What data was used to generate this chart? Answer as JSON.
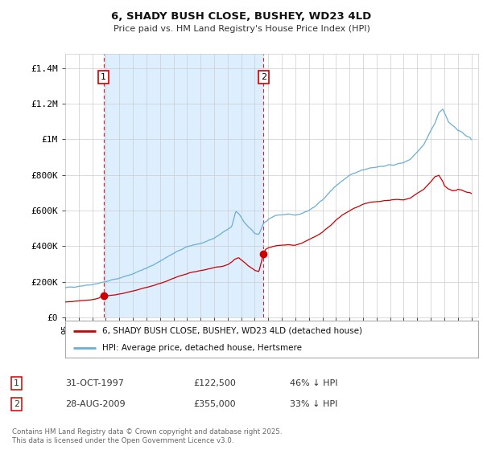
{
  "title": "6, SHADY BUSH CLOSE, BUSHEY, WD23 4LD",
  "subtitle": "Price paid vs. HM Land Registry's House Price Index (HPI)",
  "ylabel_ticks": [
    "£0",
    "£200K",
    "£400K",
    "£600K",
    "£800K",
    "£1M",
    "£1.2M",
    "£1.4M"
  ],
  "ytick_vals": [
    0,
    200000,
    400000,
    600000,
    800000,
    1000000,
    1200000,
    1400000
  ],
  "ylim": [
    0,
    1480000
  ],
  "xlim_start": 1995.0,
  "xlim_end": 2025.5,
  "hpi_color": "#6baed6",
  "price_color": "#cc0000",
  "shade_color": "#ddeeff",
  "sale1_date": 1997.83,
  "sale1_price": 122500,
  "sale2_date": 2009.65,
  "sale2_price": 355000,
  "legend_label_red": "6, SHADY BUSH CLOSE, BUSHEY, WD23 4LD (detached house)",
  "legend_label_blue": "HPI: Average price, detached house, Hertsmere",
  "footer": "Contains HM Land Registry data © Crown copyright and database right 2025.\nThis data is licensed under the Open Government Licence v3.0.",
  "background_color": "#ffffff",
  "grid_color": "#cccccc",
  "hpi_anchors": [
    [
      1995.0,
      165000
    ],
    [
      1995.5,
      170000
    ],
    [
      1996.0,
      175000
    ],
    [
      1996.5,
      180000
    ],
    [
      1997.0,
      185000
    ],
    [
      1997.5,
      192000
    ],
    [
      1998.0,
      200000
    ],
    [
      1998.5,
      210000
    ],
    [
      1999.0,
      220000
    ],
    [
      1999.5,
      232000
    ],
    [
      2000.0,
      245000
    ],
    [
      2000.5,
      260000
    ],
    [
      2001.0,
      275000
    ],
    [
      2001.5,
      295000
    ],
    [
      2002.0,
      315000
    ],
    [
      2002.5,
      338000
    ],
    [
      2003.0,
      358000
    ],
    [
      2003.5,
      378000
    ],
    [
      2004.0,
      395000
    ],
    [
      2004.5,
      408000
    ],
    [
      2005.0,
      415000
    ],
    [
      2005.5,
      425000
    ],
    [
      2006.0,
      445000
    ],
    [
      2006.5,
      470000
    ],
    [
      2007.0,
      495000
    ],
    [
      2007.3,
      510000
    ],
    [
      2007.6,
      595000
    ],
    [
      2007.9,
      575000
    ],
    [
      2008.2,
      540000
    ],
    [
      2008.5,
      510000
    ],
    [
      2008.8,
      490000
    ],
    [
      2009.0,
      470000
    ],
    [
      2009.3,
      465000
    ],
    [
      2009.65,
      530000
    ],
    [
      2009.9,
      540000
    ],
    [
      2010.0,
      550000
    ],
    [
      2010.5,
      570000
    ],
    [
      2011.0,
      575000
    ],
    [
      2011.5,
      580000
    ],
    [
      2012.0,
      575000
    ],
    [
      2012.5,
      585000
    ],
    [
      2013.0,
      600000
    ],
    [
      2013.5,
      625000
    ],
    [
      2014.0,
      660000
    ],
    [
      2014.5,
      700000
    ],
    [
      2015.0,
      740000
    ],
    [
      2015.5,
      770000
    ],
    [
      2016.0,
      795000
    ],
    [
      2016.5,
      815000
    ],
    [
      2017.0,
      830000
    ],
    [
      2017.5,
      840000
    ],
    [
      2018.0,
      845000
    ],
    [
      2018.5,
      850000
    ],
    [
      2019.0,
      855000
    ],
    [
      2019.5,
      860000
    ],
    [
      2020.0,
      870000
    ],
    [
      2020.5,
      890000
    ],
    [
      2021.0,
      930000
    ],
    [
      2021.5,
      975000
    ],
    [
      2022.0,
      1050000
    ],
    [
      2022.3,
      1090000
    ],
    [
      2022.6,
      1150000
    ],
    [
      2022.9,
      1170000
    ],
    [
      2023.0,
      1150000
    ],
    [
      2023.3,
      1100000
    ],
    [
      2023.6,
      1080000
    ],
    [
      2023.9,
      1060000
    ],
    [
      2024.0,
      1050000
    ],
    [
      2024.3,
      1040000
    ],
    [
      2024.6,
      1020000
    ],
    [
      2024.9,
      1010000
    ],
    [
      2025.0,
      1000000
    ]
  ],
  "price_anchors": [
    [
      1995.0,
      85000
    ],
    [
      1995.5,
      88000
    ],
    [
      1996.0,
      91000
    ],
    [
      1996.5,
      95000
    ],
    [
      1997.0,
      100000
    ],
    [
      1997.5,
      108000
    ],
    [
      1997.83,
      122500
    ],
    [
      1998.0,
      120000
    ],
    [
      1998.5,
      125000
    ],
    [
      1999.0,
      130000
    ],
    [
      1999.5,
      138000
    ],
    [
      2000.0,
      148000
    ],
    [
      2000.5,
      158000
    ],
    [
      2001.0,
      168000
    ],
    [
      2001.5,
      178000
    ],
    [
      2002.0,
      190000
    ],
    [
      2002.5,
      205000
    ],
    [
      2003.0,
      218000
    ],
    [
      2003.5,
      232000
    ],
    [
      2004.0,
      245000
    ],
    [
      2004.5,
      255000
    ],
    [
      2005.0,
      262000
    ],
    [
      2005.5,
      270000
    ],
    [
      2006.0,
      278000
    ],
    [
      2006.5,
      285000
    ],
    [
      2007.0,
      295000
    ],
    [
      2007.3,
      310000
    ],
    [
      2007.5,
      325000
    ],
    [
      2007.8,
      335000
    ],
    [
      2008.2,
      310000
    ],
    [
      2008.5,
      290000
    ],
    [
      2008.8,
      275000
    ],
    [
      2009.0,
      262000
    ],
    [
      2009.3,
      255000
    ],
    [
      2009.65,
      355000
    ],
    [
      2009.8,
      380000
    ],
    [
      2010.0,
      390000
    ],
    [
      2010.5,
      400000
    ],
    [
      2011.0,
      405000
    ],
    [
      2011.5,
      408000
    ],
    [
      2012.0,
      405000
    ],
    [
      2012.5,
      418000
    ],
    [
      2013.0,
      435000
    ],
    [
      2013.5,
      455000
    ],
    [
      2014.0,
      480000
    ],
    [
      2014.5,
      510000
    ],
    [
      2015.0,
      545000
    ],
    [
      2015.5,
      575000
    ],
    [
      2016.0,
      598000
    ],
    [
      2016.5,
      618000
    ],
    [
      2017.0,
      635000
    ],
    [
      2017.5,
      645000
    ],
    [
      2018.0,
      650000
    ],
    [
      2018.5,
      655000
    ],
    [
      2019.0,
      658000
    ],
    [
      2019.5,
      662000
    ],
    [
      2020.0,
      660000
    ],
    [
      2020.5,
      670000
    ],
    [
      2021.0,
      695000
    ],
    [
      2021.5,
      720000
    ],
    [
      2022.0,
      760000
    ],
    [
      2022.3,
      790000
    ],
    [
      2022.6,
      800000
    ],
    [
      2022.9,
      760000
    ],
    [
      2023.0,
      740000
    ],
    [
      2023.3,
      720000
    ],
    [
      2023.6,
      710000
    ],
    [
      2023.9,
      715000
    ],
    [
      2024.0,
      720000
    ],
    [
      2024.3,
      715000
    ],
    [
      2024.6,
      705000
    ],
    [
      2024.9,
      700000
    ],
    [
      2025.0,
      695000
    ]
  ]
}
